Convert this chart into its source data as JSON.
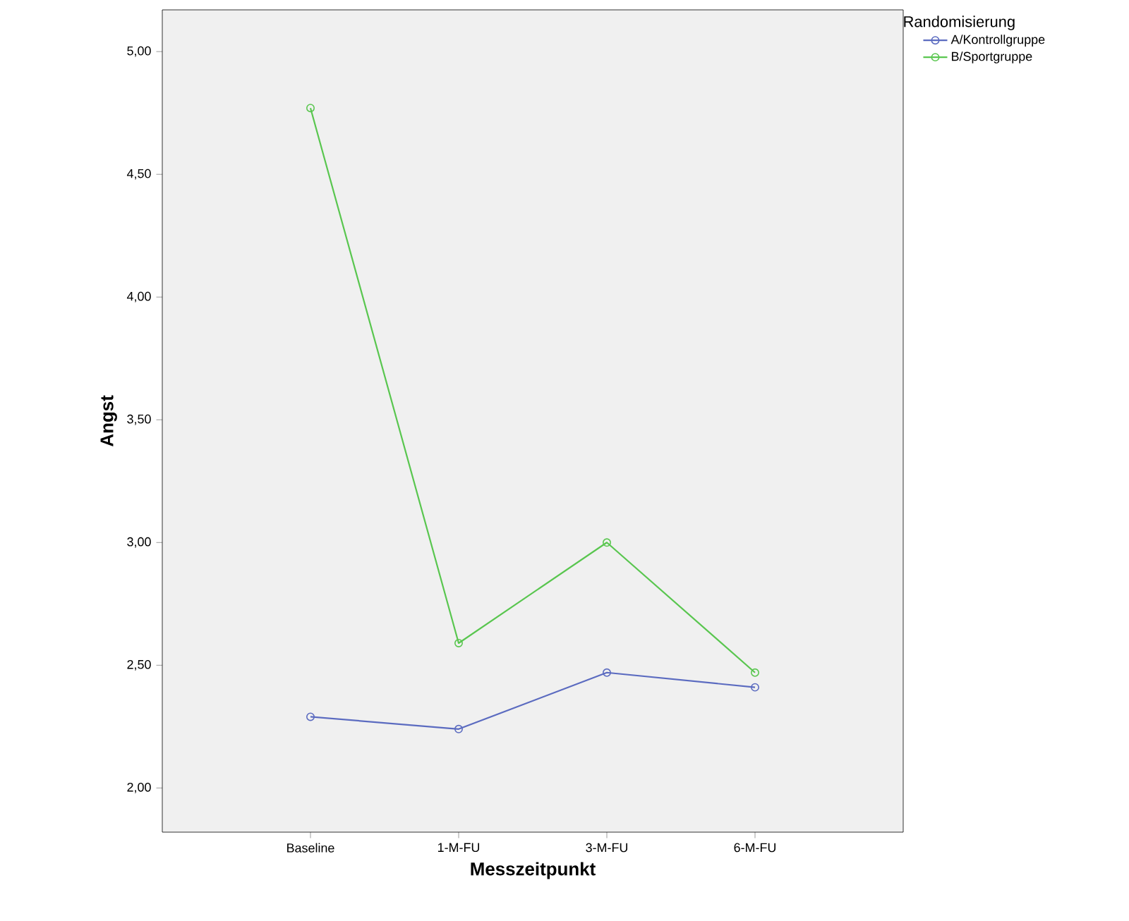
{
  "chart_data": {
    "type": "line",
    "xlabel": "Messzeitpunkt",
    "ylabel": "Angst",
    "legend_title": "Randomisierung",
    "categories": [
      "Baseline",
      "1-M-FU",
      "3-M-FU",
      "6-M-FU"
    ],
    "series": [
      {
        "name": "A/Kontrollgruppe",
        "color": "#5b6bc0",
        "values": [
          2.29,
          2.24,
          2.47,
          2.41
        ]
      },
      {
        "name": "B/Sportgruppe",
        "color": "#59c64f",
        "values": [
          4.77,
          2.59,
          3.0,
          2.47
        ]
      }
    ],
    "ylim": [
      1.82,
      5.17
    ],
    "yticks": [
      {
        "value": 2,
        "label": "2,00"
      },
      {
        "value": 2.5,
        "label": "2,50"
      },
      {
        "value": 3,
        "label": "3,00"
      },
      {
        "value": 3.5,
        "label": "3,50"
      },
      {
        "value": 4,
        "label": "4,00"
      },
      {
        "value": 4.5,
        "label": "4,50"
      },
      {
        "value": 5,
        "label": "5,00"
      }
    ],
    "legend": "right",
    "marker": "circle",
    "line_style": "solid",
    "grid": false
  }
}
